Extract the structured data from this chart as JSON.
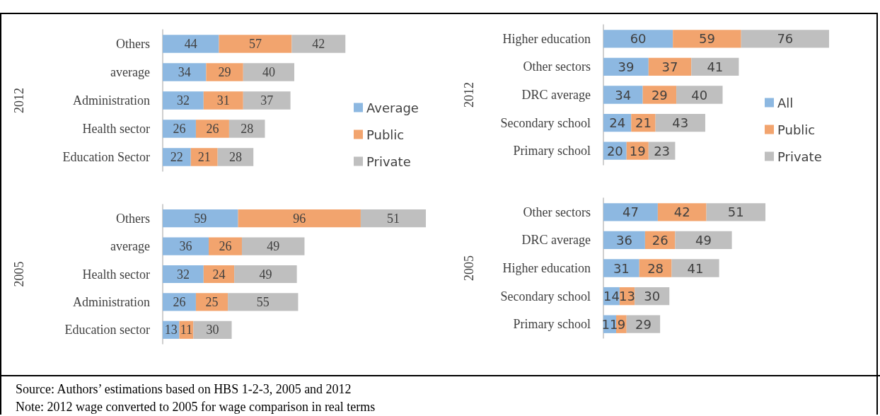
{
  "chart_data": [
    {
      "type": "bar",
      "orientation": "horizontal",
      "stacked": true,
      "data_labels": true,
      "legend": "right",
      "ylabel": "2012",
      "categories": [
        "Others",
        "average",
        "Administration",
        "Health sector",
        "Education Sector"
      ],
      "series": [
        {
          "name": "Average",
          "color": "#8db8e1",
          "values": [
            44,
            34,
            32,
            26,
            22
          ]
        },
        {
          "name": "Public",
          "color": "#f2a46e",
          "values": [
            57,
            29,
            31,
            26,
            21
          ]
        },
        {
          "name": "Private",
          "color": "#bfbfbf",
          "values": [
            42,
            40,
            37,
            28,
            28
          ]
        }
      ]
    },
    {
      "type": "bar",
      "orientation": "horizontal",
      "stacked": true,
      "data_labels": true,
      "ylabel": "2005",
      "categories": [
        "Others",
        "average",
        "Health sector",
        "Administration",
        "Education sector"
      ],
      "series": [
        {
          "color": "#8db8e1",
          "values": [
            59,
            36,
            32,
            26,
            13
          ]
        },
        {
          "color": "#f2a46e",
          "values": [
            96,
            26,
            24,
            25,
            11
          ]
        },
        {
          "color": "#bfbfbf",
          "values": [
            51,
            49,
            49,
            55,
            30
          ]
        }
      ]
    },
    {
      "type": "bar",
      "orientation": "horizontal",
      "stacked": true,
      "data_labels": true,
      "legend": "right",
      "ylabel": "2012",
      "categories": [
        "Higher education",
        "Other sectors",
        "DRC average",
        "Secondary school",
        "Primary school"
      ],
      "series": [
        {
          "name": "All",
          "color": "#8db8e1",
          "values": [
            60,
            39,
            34,
            24,
            20
          ]
        },
        {
          "name": "Public",
          "color": "#f2a46e",
          "values": [
            59,
            37,
            29,
            21,
            19
          ]
        },
        {
          "name": "Private",
          "color": "#bfbfbf",
          "values": [
            76,
            41,
            40,
            43,
            23
          ]
        }
      ]
    },
    {
      "type": "bar",
      "orientation": "horizontal",
      "stacked": true,
      "data_labels": true,
      "ylabel": "2005",
      "categories": [
        "Other sectors",
        "DRC average",
        "Higher education",
        "Secondary school",
        "Primary school"
      ],
      "series": [
        {
          "color": "#8db8e1",
          "values": [
            47,
            36,
            31,
            14,
            11
          ]
        },
        {
          "color": "#f2a46e",
          "values": [
            42,
            26,
            28,
            13,
            9
          ]
        },
        {
          "color": "#bfbfbf",
          "values": [
            51,
            49,
            41,
            30,
            29
          ]
        }
      ],
      "annotations": [
        "Source: Authors’ estimations based on HBS 1-2-3, 2005 and 2012",
        "Note: 2012 wage converted to 2005 for wage comparison in real terms"
      ]
    }
  ]
}
